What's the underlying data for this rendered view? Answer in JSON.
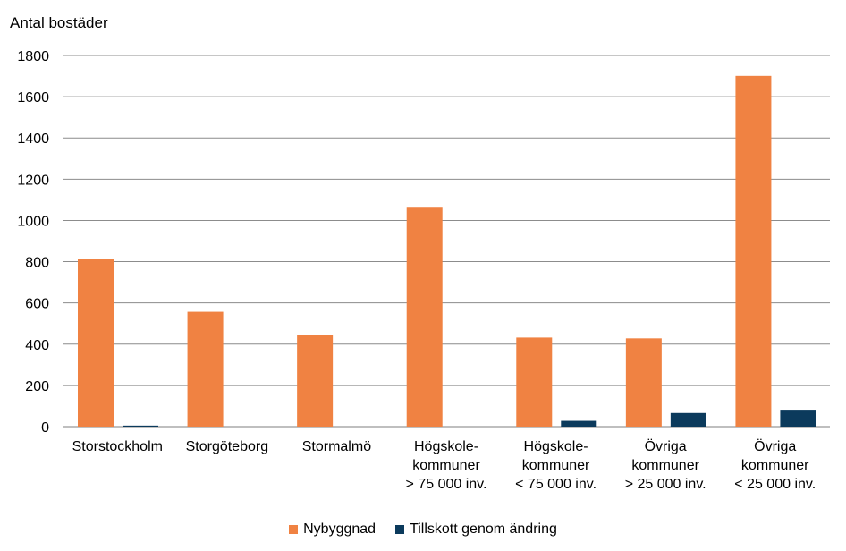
{
  "chart_data": {
    "type": "bar",
    "ylabel": "Antal bostäder",
    "ylim": [
      0,
      1800
    ],
    "yticks": [
      0,
      200,
      400,
      600,
      800,
      1000,
      1200,
      1400,
      1600,
      1800
    ],
    "grid": true,
    "categories": [
      [
        "Storstockholm"
      ],
      [
        "Storgöteborg"
      ],
      [
        "Stormalmö"
      ],
      [
        "Högskole-",
        "kommuner",
        "> 75 000 inv."
      ],
      [
        "Högskole-",
        "kommuner",
        "< 75 000 inv."
      ],
      [
        "Övriga",
        "kommuner",
        "> 25 000 inv."
      ],
      [
        "Övriga",
        "kommuner",
        "< 25 000 inv."
      ]
    ],
    "series": [
      {
        "name": "Nybyggnad",
        "color": "#F08242",
        "values": [
          815,
          557,
          444,
          1066,
          432,
          428,
          1701
        ]
      },
      {
        "name": "Tillskott genom ändring",
        "color": "#0B3A5C",
        "values": [
          5,
          0,
          0,
          0,
          28,
          66,
          82
        ]
      }
    ],
    "legend_position": "bottom"
  }
}
